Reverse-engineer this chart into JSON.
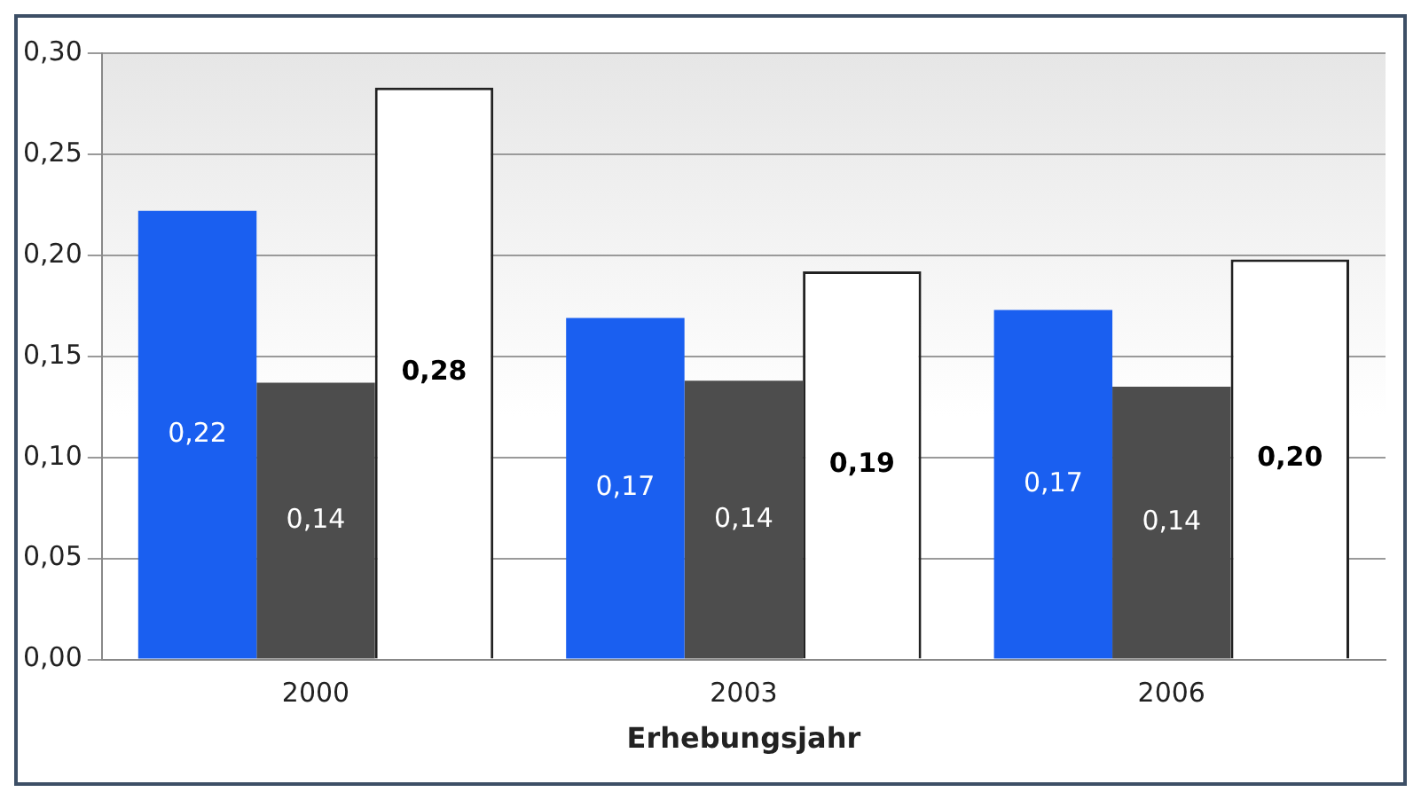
{
  "chart_data": {
    "type": "bar",
    "xlabel": "Erhebungsjahr",
    "categories": [
      "2000",
      "2003",
      "2006"
    ],
    "series": [
      {
        "color": "#1a5ff0",
        "values": [
          0.222,
          0.169,
          0.173
        ],
        "value_labels": [
          "0,22",
          "0,17",
          "0,17"
        ]
      },
      {
        "color": "#4d4d4d",
        "values": [
          0.137,
          0.138,
          0.135
        ],
        "value_labels": [
          "0,14",
          "0,14",
          "0,14"
        ]
      },
      {
        "color": "#ffffff",
        "values": [
          0.283,
          0.192,
          0.198
        ],
        "value_labels": [
          "0,28",
          "0,19",
          "0,20"
        ]
      }
    ],
    "ylim": [
      0,
      0.3
    ],
    "yticks": [
      {
        "value": 0,
        "label": "0,00"
      },
      {
        "value": 0.05,
        "label": "0,05"
      },
      {
        "value": 0.1,
        "label": "0,10"
      },
      {
        "value": 0.15,
        "label": "0,15"
      },
      {
        "value": 0.2,
        "label": "0,20"
      },
      {
        "value": 0.25,
        "label": "0,25"
      },
      {
        "value": 0.3,
        "label": "0,30"
      }
    ],
    "grid": "y",
    "legend": false
  }
}
